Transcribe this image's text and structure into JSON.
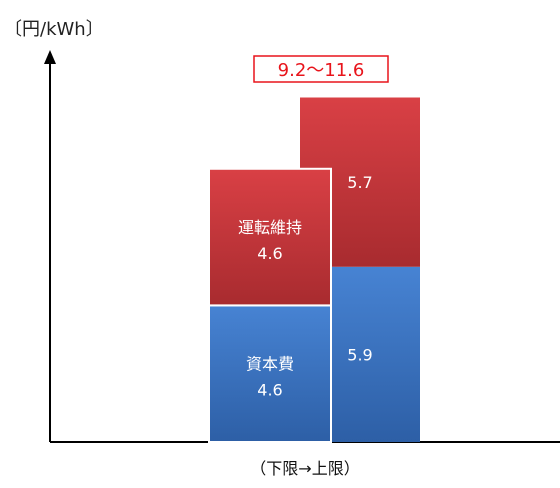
{
  "chart_data": {
    "type": "bar",
    "stacked": true,
    "y_unit_label": "〔円/kWh〕",
    "x_caption": "（下限→上限）",
    "range_annotation": "9.2〜11.6",
    "ylim": [
      0,
      12.5
    ],
    "grid": false,
    "legend": "none",
    "bars": [
      {
        "segments": [
          {
            "name": "資本費",
            "label": "資本費",
            "value": 4.6,
            "value_text": "4.6",
            "color": "#3b74c4"
          },
          {
            "name": "運転維持",
            "label": "運転維持",
            "value": 4.6,
            "value_text": "4.6",
            "color": "#c8353a"
          }
        ]
      },
      {
        "segments": [
          {
            "name": "資本費",
            "label": "",
            "value": 5.9,
            "value_text": "5.9",
            "color": "#3b74c4"
          },
          {
            "name": "運転維持",
            "label": "",
            "value": 5.7,
            "value_text": "5.7",
            "color": "#c8353a"
          }
        ]
      }
    ]
  }
}
